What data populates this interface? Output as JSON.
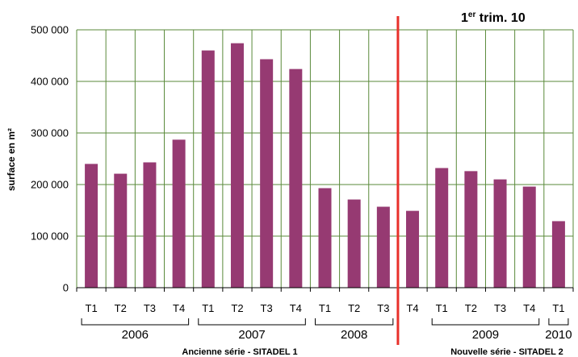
{
  "chart_data": {
    "type": "bar",
    "title": {
      "prefix": "1",
      "sup": "er",
      "suffix": " trim. 10"
    },
    "ylabel": "surface en m²",
    "ylim": [
      0,
      500000
    ],
    "yticks": [
      {
        "value": 0,
        "label": "0"
      },
      {
        "value": 100000,
        "label": "100 000"
      },
      {
        "value": 200000,
        "label": "200 000"
      },
      {
        "value": 300000,
        "label": "300 000"
      },
      {
        "value": 400000,
        "label": "400 000"
      },
      {
        "value": 500000,
        "label": "500 000"
      }
    ],
    "categories": [
      "T1",
      "T2",
      "T3",
      "T4",
      "T1",
      "T2",
      "T3",
      "T4",
      "T1",
      "T2",
      "T3",
      "T4",
      "T1",
      "T2",
      "T3",
      "T4",
      "T1"
    ],
    "values": [
      240000,
      221000,
      243000,
      287000,
      460000,
      474000,
      443000,
      424000,
      193000,
      171000,
      157000,
      149000,
      232000,
      226000,
      210000,
      196000,
      129000
    ],
    "groups": [
      {
        "label": "2006",
        "start": 0,
        "end": 3
      },
      {
        "label": "2007",
        "start": 4,
        "end": 7
      },
      {
        "label": "2008",
        "start": 8,
        "end": 10
      },
      {
        "label": "2009",
        "start": 12,
        "end": 15
      },
      {
        "label": "2010",
        "start": 16,
        "end": 16
      }
    ],
    "series_break_after_index": 10,
    "series_notes": {
      "left": "Ancienne série - SITADEL 1",
      "right": "Nouvelle série - SITADEL 2"
    },
    "grid": true,
    "colors": {
      "bar": "#963A72",
      "grid": "#5A8A3A",
      "separator": "#E8302A",
      "axis": "#000000"
    }
  }
}
